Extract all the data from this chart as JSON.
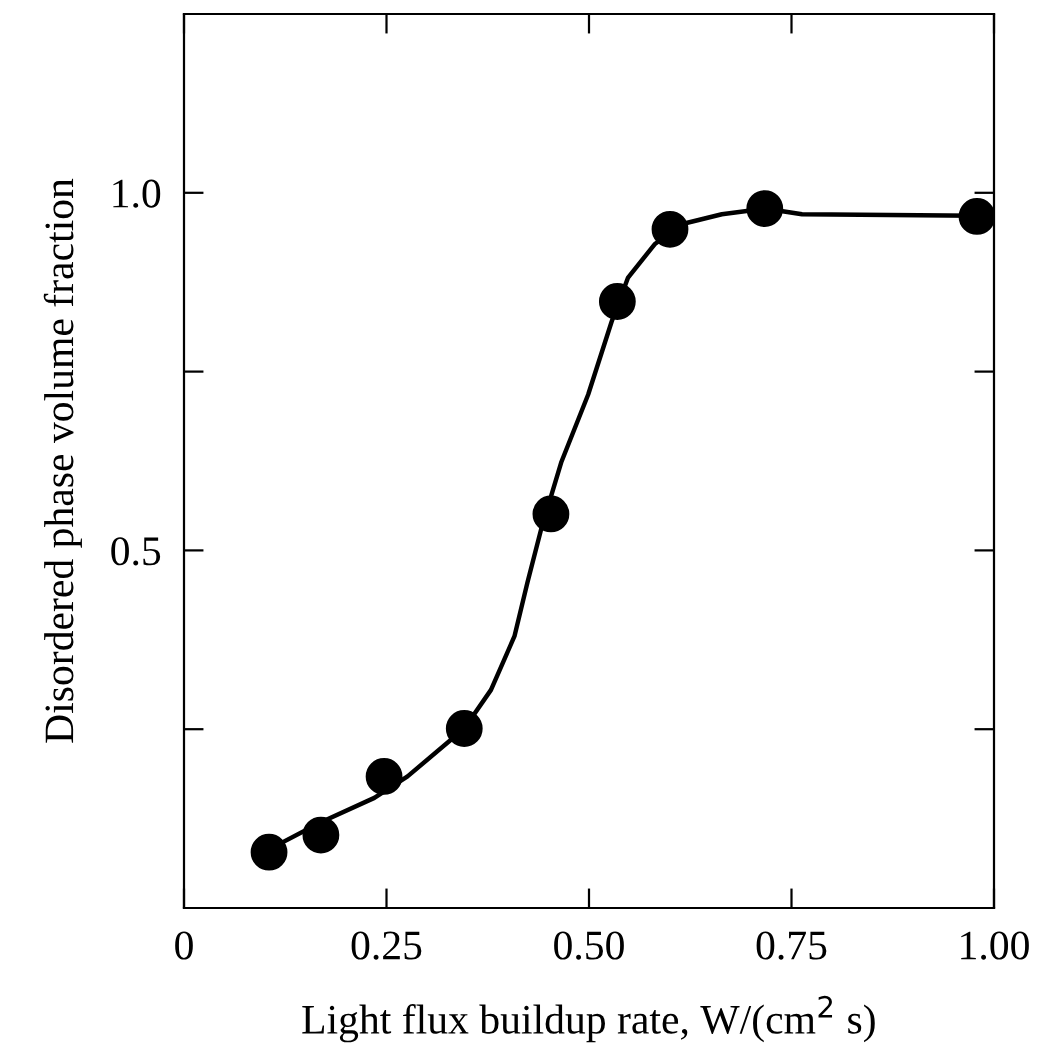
{
  "chart_data": {
    "type": "scatter",
    "xlabel": "Light flux buildup rate, W/(cm$^{2}$ s)",
    "ylabel": "Disordered phase volume fraction",
    "xlim": [
      0,
      1
    ],
    "ylim": [
      0,
      1.25
    ],
    "xticks": [
      {
        "value": 0,
        "label": "0"
      },
      {
        "value": 0.25,
        "label": "0.25"
      },
      {
        "value": 0.5,
        "label": "0.50"
      },
      {
        "value": 0.75,
        "label": "0.75"
      },
      {
        "value": 1,
        "label": "1.00"
      }
    ],
    "yticks": [
      {
        "value": 0.25,
        "label": null
      },
      {
        "value": 0.5,
        "label": "0.5"
      },
      {
        "value": 0.75,
        "label": null
      },
      {
        "value": 1,
        "label": "1.0"
      }
    ],
    "grid": false,
    "legend": false,
    "series": [
      {
        "type": "line",
        "color": "#000000",
        "line_style": "solid",
        "marker": "none",
        "x": [
          0.105,
          0.169,
          0.235,
          0.276,
          0.346,
          0.379,
          0.408,
          0.424,
          0.441,
          0.466,
          0.499,
          0.528,
          0.548,
          0.581,
          0.614,
          0.664,
          0.717,
          0.763,
          0.979
        ],
        "values": [
          0.082,
          0.12,
          0.154,
          0.184,
          0.251,
          0.305,
          0.38,
          0.455,
          0.53,
          0.624,
          0.718,
          0.82,
          0.881,
          0.928,
          0.956,
          0.97,
          0.978,
          0.97,
          0.968
        ]
      },
      {
        "color": "#000000",
        "marker": "circle",
        "x": [
          0.105,
          0.169,
          0.247,
          0.346,
          0.453,
          0.535,
          0.6,
          0.717,
          0.979
        ],
        "values": [
          0.078,
          0.102,
          0.184,
          0.251,
          0.551,
          0.848,
          0.949,
          0.978,
          0.967
        ]
      }
    ]
  }
}
